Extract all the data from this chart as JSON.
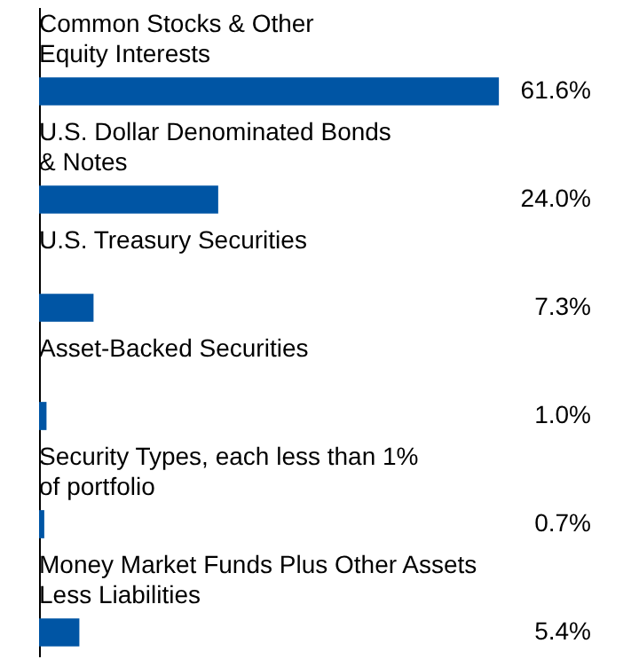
{
  "chart_data": {
    "type": "bar",
    "orientation": "horizontal",
    "categories": [
      "Common Stocks & Other\nEquity Interests",
      "U.S. Dollar Denominated Bonds\n& Notes",
      "U.S. Treasury Securities",
      "Asset-Backed Securities",
      "Security Types, each less than 1%\nof portfolio",
      "Money Market Funds Plus Other Assets\nLess Liabilities"
    ],
    "values": [
      61.6,
      24.0,
      7.3,
      1.0,
      0.7,
      5.4
    ],
    "value_labels": [
      "61.6%",
      "24.0%",
      "7.3%",
      "1.0%",
      "0.7%",
      "5.4%"
    ],
    "color": "#0055a4"
  }
}
